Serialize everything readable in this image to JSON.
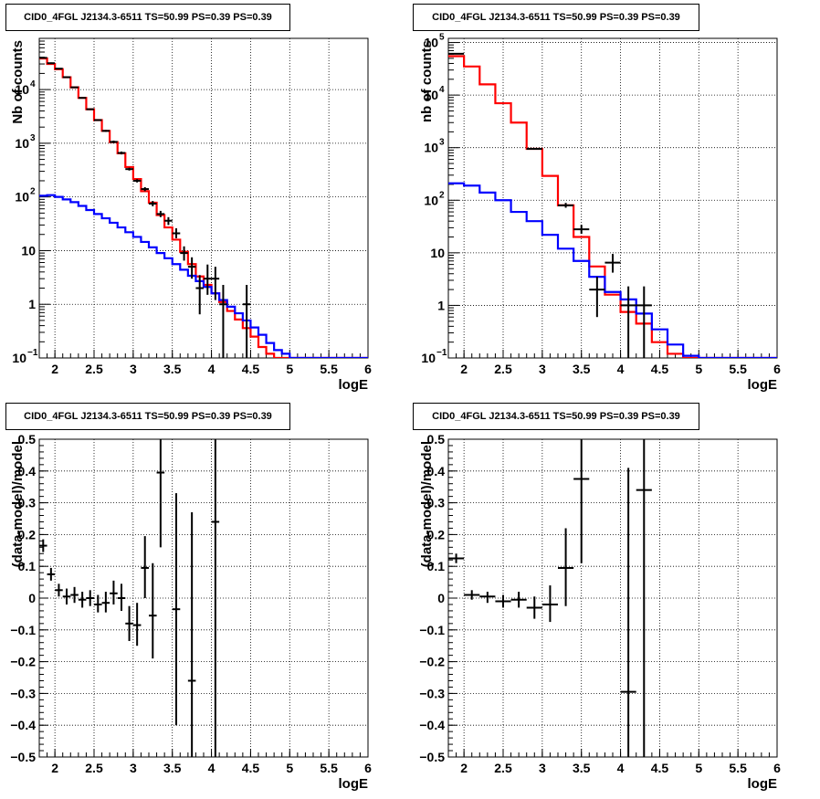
{
  "chart_data": [
    {
      "type": "line",
      "title": "CID0_4FGL J2134.3-6511 TS=50.99 PS=0.39 PS=0.39",
      "xlabel": "logE",
      "ylabel": "Nb of counts",
      "xlim": [
        1.8,
        6.0
      ],
      "ylim": [
        0.1,
        90000
      ],
      "yscale": "log",
      "grid": true,
      "x_ticks": [
        "2",
        "2.5",
        "3",
        "3.5",
        "4",
        "4.5",
        "5",
        "5.5",
        "6"
      ],
      "y_ticks": [
        {
          "value": 0.1,
          "label": "10",
          "exp": "−1"
        },
        {
          "value": 1,
          "label": "1",
          "exp": ""
        },
        {
          "value": 10,
          "label": "10",
          "exp": ""
        },
        {
          "value": 100,
          "label": "10",
          "exp": "2"
        },
        {
          "value": 1000,
          "label": "10",
          "exp": "3"
        },
        {
          "value": 10000,
          "label": "10",
          "exp": "4"
        }
      ],
      "bin_width": 0.1,
      "bin_start": 1.8,
      "series": [
        {
          "color": "#ff0000",
          "style": "step",
          "values": [
            38000,
            30000,
            24000,
            17000,
            11000,
            7000,
            4300,
            2700,
            1700,
            1050,
            650,
            360,
            215,
            128,
            78,
            46,
            27,
            16,
            9.5,
            5.6,
            3.3,
            2.3,
            1.6,
            1.1,
            0.75,
            0.52,
            0.36,
            0.25,
            0.16,
            0.12,
            0.1,
            0.1,
            0.1,
            0.1,
            0.1,
            0.1,
            0.1,
            0.1,
            0.1,
            0.1,
            0.1,
            0.1
          ]
        },
        {
          "color": "#0000ff",
          "style": "step",
          "values": [
            105,
            108,
            100,
            90,
            80,
            68,
            57,
            48,
            40,
            33,
            27,
            22,
            18,
            14.5,
            11.5,
            9,
            7.2,
            5.6,
            4.4,
            3.4,
            2.7,
            2.1,
            1.6,
            1.2,
            0.9,
            0.68,
            0.5,
            0.37,
            0.27,
            0.19,
            0.14,
            0.12,
            0.1,
            0.1,
            0.1,
            0.1,
            0.1,
            0.1,
            0.1,
            0.1,
            0.1,
            0.1
          ]
        }
      ],
      "points": [
        {
          "x": 1.85,
          "y": 39000,
          "ylo": 38000,
          "yhi": 40000
        },
        {
          "x": 1.95,
          "y": 31000,
          "ylo": 30000,
          "yhi": 32000
        },
        {
          "x": 2.05,
          "y": 24500,
          "ylo": 24000,
          "yhi": 25000
        },
        {
          "x": 2.15,
          "y": 17000,
          "ylo": 16500,
          "yhi": 17500
        },
        {
          "x": 2.25,
          "y": 11000,
          "ylo": 10700,
          "yhi": 11300
        },
        {
          "x": 2.35,
          "y": 7000,
          "ylo": 6800,
          "yhi": 7200
        },
        {
          "x": 2.45,
          "y": 4300,
          "ylo": 4150,
          "yhi": 4450
        },
        {
          "x": 2.55,
          "y": 2700,
          "ylo": 2600,
          "yhi": 2800
        },
        {
          "x": 2.65,
          "y": 1700,
          "ylo": 1630,
          "yhi": 1770
        },
        {
          "x": 2.75,
          "y": 1060,
          "ylo": 1000,
          "yhi": 1120
        },
        {
          "x": 2.85,
          "y": 660,
          "ylo": 620,
          "yhi": 700
        },
        {
          "x": 2.95,
          "y": 330,
          "ylo": 310,
          "yhi": 350
        },
        {
          "x": 3.05,
          "y": 200,
          "ylo": 186,
          "yhi": 214
        },
        {
          "x": 3.15,
          "y": 140,
          "ylo": 128,
          "yhi": 152
        },
        {
          "x": 3.25,
          "y": 75,
          "ylo": 67,
          "yhi": 84
        },
        {
          "x": 3.35,
          "y": 48,
          "ylo": 42,
          "yhi": 55
        },
        {
          "x": 3.45,
          "y": 36,
          "ylo": 30,
          "yhi": 42
        },
        {
          "x": 3.55,
          "y": 21,
          "ylo": 17,
          "yhi": 26
        },
        {
          "x": 3.65,
          "y": 9,
          "ylo": 6.5,
          "yhi": 12
        },
        {
          "x": 3.75,
          "y": 5,
          "ylo": 3,
          "yhi": 7.5
        },
        {
          "x": 3.85,
          "y": 2,
          "ylo": 0.65,
          "yhi": 3.5
        },
        {
          "x": 3.95,
          "y": 3,
          "ylo": 1.5,
          "yhi": 5.5
        },
        {
          "x": 4.05,
          "y": 3,
          "ylo": 1.2,
          "yhi": 5
        },
        {
          "x": 4.15,
          "y": 1,
          "ylo": 0.1,
          "yhi": 2.3
        },
        {
          "x": 4.45,
          "y": 1,
          "ylo": 0.1,
          "yhi": 2.3
        }
      ]
    },
    {
      "type": "line",
      "title": "CID0_4FGL J2134.3-6511 TS=50.99 PS=0.39 PS=0.39",
      "xlabel": "logE",
      "ylabel": "nb of counts",
      "xlim": [
        1.8,
        6.0
      ],
      "ylim": [
        0.1,
        120000
      ],
      "yscale": "log",
      "grid": true,
      "x_ticks": [
        "2",
        "2.5",
        "3",
        "3.5",
        "4",
        "4.5",
        "5",
        "5.5",
        "6"
      ],
      "y_ticks": [
        {
          "value": 0.1,
          "label": "10",
          "exp": "−1"
        },
        {
          "value": 1,
          "label": "1",
          "exp": ""
        },
        {
          "value": 10,
          "label": "10",
          "exp": ""
        },
        {
          "value": 100,
          "label": "10",
          "exp": "2"
        },
        {
          "value": 1000,
          "label": "10",
          "exp": "3"
        },
        {
          "value": 10000,
          "label": "10",
          "exp": "4"
        },
        {
          "value": 100000,
          "label": "10",
          "exp": "5"
        }
      ],
      "bin_width": 0.2,
      "bin_start": 1.8,
      "series": [
        {
          "color": "#ff0000",
          "style": "step",
          "values": [
            55000,
            35000,
            16000,
            7000,
            3000,
            950,
            290,
            80,
            20,
            5.5,
            1.6,
            0.75,
            0.45,
            0.2,
            0.12,
            0.1,
            0.1,
            0.1,
            0.1,
            0.1,
            0.1
          ]
        },
        {
          "color": "#0000ff",
          "style": "step",
          "values": [
            210,
            190,
            140,
            100,
            60,
            40,
            22,
            12,
            7,
            3.5,
            1.8,
            1.3,
            0.7,
            0.35,
            0.18,
            0.11,
            0.1,
            0.1,
            0.1,
            0.1,
            0.1
          ]
        }
      ],
      "points": [
        {
          "x": 1.9,
          "y": 61000,
          "ylo": 60000,
          "yhi": 62000
        },
        {
          "x": 2.9,
          "y": 950,
          "ylo": 920,
          "yhi": 980
        },
        {
          "x": 3.3,
          "y": 80,
          "ylo": 72,
          "yhi": 89
        },
        {
          "x": 3.5,
          "y": 28,
          "ylo": 23,
          "yhi": 34
        },
        {
          "x": 3.7,
          "y": 2,
          "ylo": 0.6,
          "yhi": 3.5
        },
        {
          "x": 3.9,
          "y": 6.5,
          "ylo": 4.2,
          "yhi": 9.5
        },
        {
          "x": 4.1,
          "y": 1,
          "ylo": 0.1,
          "yhi": 2.3
        },
        {
          "x": 4.3,
          "y": 1,
          "ylo": 0.1,
          "yhi": 2.3
        }
      ]
    },
    {
      "type": "scatter",
      "title": "CID0_4FGL J2134.3-6511 TS=50.99 PS=0.39 PS=0.39",
      "xlabel": "logE",
      "ylabel": "(data-model)/model",
      "xlim": [
        1.8,
        6.0
      ],
      "ylim": [
        -0.5,
        0.5
      ],
      "grid": true,
      "x_ticks": [
        "2",
        "2.5",
        "3",
        "3.5",
        "4",
        "4.5",
        "5",
        "5.5",
        "6"
      ],
      "y_ticks": [
        "−0.5",
        "−0.4",
        "−0.3",
        "−0.2",
        "−0.1",
        "0",
        "0.1",
        "0.2",
        "0.3",
        "0.4",
        "0.5"
      ],
      "points": [
        {
          "x": 1.85,
          "y": 0.165,
          "ylo": 0.145,
          "yhi": 0.185
        },
        {
          "x": 1.95,
          "y": 0.075,
          "ylo": 0.055,
          "yhi": 0.095
        },
        {
          "x": 2.05,
          "y": 0.025,
          "ylo": 0.005,
          "yhi": 0.045
        },
        {
          "x": 2.15,
          "y": 0.005,
          "ylo": -0.02,
          "yhi": 0.03
        },
        {
          "x": 2.25,
          "y": 0.01,
          "ylo": -0.015,
          "yhi": 0.035
        },
        {
          "x": 2.35,
          "y": -0.005,
          "ylo": -0.03,
          "yhi": 0.02
        },
        {
          "x": 2.45,
          "y": 0.0,
          "ylo": -0.025,
          "yhi": 0.025
        },
        {
          "x": 2.55,
          "y": -0.02,
          "ylo": -0.045,
          "yhi": 0.01
        },
        {
          "x": 2.65,
          "y": -0.015,
          "ylo": -0.045,
          "yhi": 0.02
        },
        {
          "x": 2.75,
          "y": 0.015,
          "ylo": -0.02,
          "yhi": 0.055
        },
        {
          "x": 2.85,
          "y": 0.0,
          "ylo": -0.04,
          "yhi": 0.045
        },
        {
          "x": 2.95,
          "y": -0.08,
          "ylo": -0.135,
          "yhi": -0.025
        },
        {
          "x": 3.05,
          "y": -0.085,
          "ylo": -0.15,
          "yhi": -0.015
        },
        {
          "x": 3.15,
          "y": 0.095,
          "ylo": 0.0,
          "yhi": 0.195
        },
        {
          "x": 3.25,
          "y": -0.055,
          "ylo": -0.19,
          "yhi": 0.11
        },
        {
          "x": 3.35,
          "y": 0.395,
          "ylo": 0.16,
          "yhi": 0.5
        },
        {
          "x": 3.55,
          "y": -0.035,
          "ylo": -0.4,
          "yhi": 0.33
        },
        {
          "x": 3.75,
          "y": -0.26,
          "ylo": -0.5,
          "yhi": 0.27
        },
        {
          "x": 4.05,
          "y": 0.24,
          "ylo": -0.5,
          "yhi": 0.5
        }
      ]
    },
    {
      "type": "scatter",
      "title": "CID0_4FGL J2134.3-6511 TS=50.99 PS=0.39 PS=0.39",
      "xlabel": "logE",
      "ylabel": "(data-model)/model",
      "xlim": [
        1.8,
        6.0
      ],
      "ylim": [
        -0.5,
        0.5
      ],
      "grid": true,
      "x_ticks": [
        "2",
        "2.5",
        "3",
        "3.5",
        "4",
        "4.5",
        "5",
        "5.5",
        "6"
      ],
      "y_ticks": [
        "−0.5",
        "−0.4",
        "−0.3",
        "−0.2",
        "−0.1",
        "0",
        "0.1",
        "0.2",
        "0.3",
        "0.4",
        "0.5"
      ],
      "points": [
        {
          "x": 1.9,
          "y": 0.125,
          "ylo": 0.11,
          "yhi": 0.14
        },
        {
          "x": 2.1,
          "y": 0.01,
          "ylo": -0.005,
          "yhi": 0.025
        },
        {
          "x": 2.3,
          "y": 0.005,
          "ylo": -0.015,
          "yhi": 0.02
        },
        {
          "x": 2.5,
          "y": -0.01,
          "ylo": -0.03,
          "yhi": 0.01
        },
        {
          "x": 2.7,
          "y": -0.005,
          "ylo": -0.03,
          "yhi": 0.02
        },
        {
          "x": 2.9,
          "y": -0.03,
          "ylo": -0.065,
          "yhi": 0.005
        },
        {
          "x": 3.1,
          "y": -0.02,
          "ylo": -0.075,
          "yhi": 0.04
        },
        {
          "x": 3.3,
          "y": 0.095,
          "ylo": -0.025,
          "yhi": 0.22
        },
        {
          "x": 3.5,
          "y": 0.375,
          "ylo": 0.11,
          "yhi": 0.5
        },
        {
          "x": 4.1,
          "y": -0.295,
          "ylo": -0.5,
          "yhi": 0.41
        },
        {
          "x": 4.3,
          "y": 0.34,
          "ylo": -0.5,
          "yhi": 0.5
        }
      ]
    }
  ]
}
